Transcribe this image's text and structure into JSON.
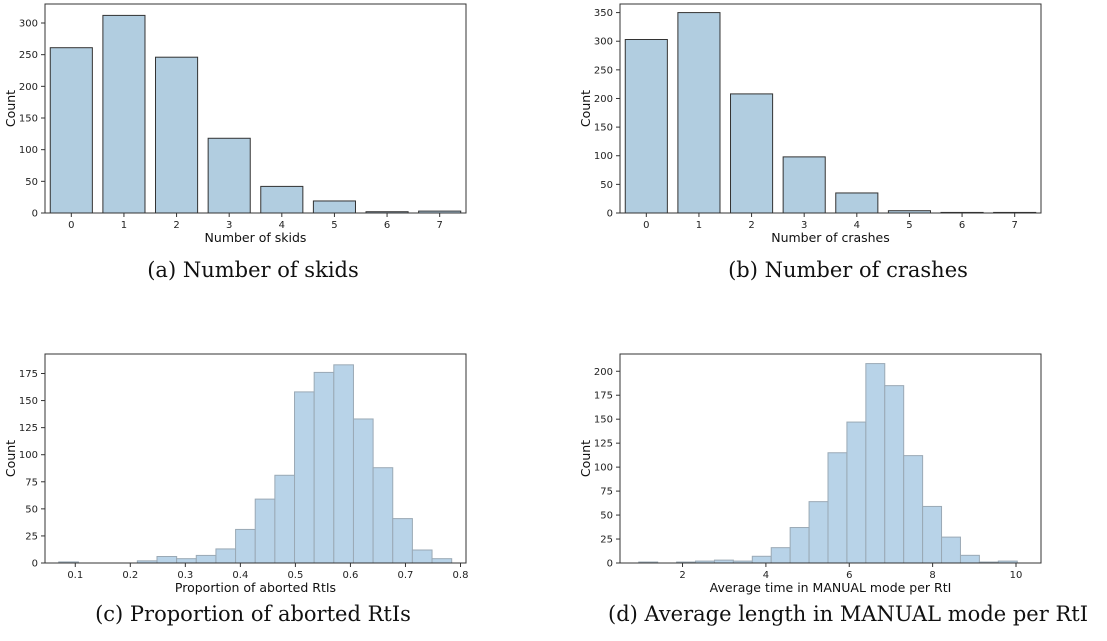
{
  "captions": {
    "a": "(a) Number of skids",
    "b": "(b) Number of crashes",
    "c": "(c) Proportion of aborted RtIs",
    "d": "(d) Average length in MANUAL mode per RtI"
  },
  "colors": {
    "bar_fill_discrete": "#b1cde0",
    "bar_fill_hist": "#b8d3e8",
    "bar_edge_discrete": "#333333",
    "bar_edge_hist": "#9aa9b5"
  },
  "chart_data": [
    {
      "type": "bar",
      "id": "skids",
      "categories": [
        "0",
        "1",
        "2",
        "3",
        "4",
        "5",
        "6",
        "7"
      ],
      "values": [
        261,
        312,
        246,
        118,
        42,
        19,
        2,
        3
      ],
      "xlabel": "Number of skids",
      "ylabel": "Count",
      "ylim": [
        0,
        330
      ],
      "yticks": [
        0,
        50,
        100,
        150,
        200,
        250,
        300
      ],
      "grid": false
    },
    {
      "type": "bar",
      "id": "crashes",
      "categories": [
        "0",
        "1",
        "2",
        "3",
        "4",
        "5",
        "6",
        "7"
      ],
      "values": [
        303,
        350,
        208,
        98,
        35,
        4,
        1,
        1
      ],
      "xlabel": "Number of crashes",
      "ylabel": "Count",
      "ylim": [
        0,
        365
      ],
      "yticks": [
        0,
        50,
        100,
        150,
        200,
        250,
        300,
        350
      ],
      "grid": false
    },
    {
      "type": "bar",
      "id": "aborted",
      "histogram": true,
      "x_min": 0.07,
      "bin_width": 0.0357,
      "values": [
        1,
        0,
        0,
        0,
        2,
        6,
        4,
        7,
        13,
        31,
        59,
        81,
        158,
        176,
        183,
        133,
        88,
        41,
        12,
        4
      ],
      "xlabel": "Proportion of aborted RtIs",
      "ylabel": "Count",
      "xlim": [
        0.045,
        0.81
      ],
      "xticks": [
        0.1,
        0.2,
        0.3,
        0.4,
        0.5,
        0.6,
        0.7,
        0.8
      ],
      "ylim": [
        0,
        193
      ],
      "yticks": [
        0,
        25,
        50,
        75,
        100,
        125,
        150,
        175
      ],
      "grid": false
    },
    {
      "type": "bar",
      "id": "manual",
      "histogram": true,
      "x_min": 0.95,
      "bin_width": 0.454,
      "values": [
        1,
        0,
        1,
        2,
        3,
        2,
        7,
        16,
        37,
        64,
        115,
        147,
        208,
        185,
        112,
        59,
        27,
        8,
        1,
        2
      ],
      "xlabel": "Average time in MANUAL mode per RtI",
      "ylabel": "Count",
      "xlim": [
        0.5,
        10.6
      ],
      "xticks": [
        2,
        4,
        6,
        8,
        10
      ],
      "ylim": [
        0,
        218
      ],
      "yticks": [
        0,
        25,
        50,
        75,
        100,
        125,
        150,
        175,
        200
      ],
      "grid": false
    }
  ]
}
